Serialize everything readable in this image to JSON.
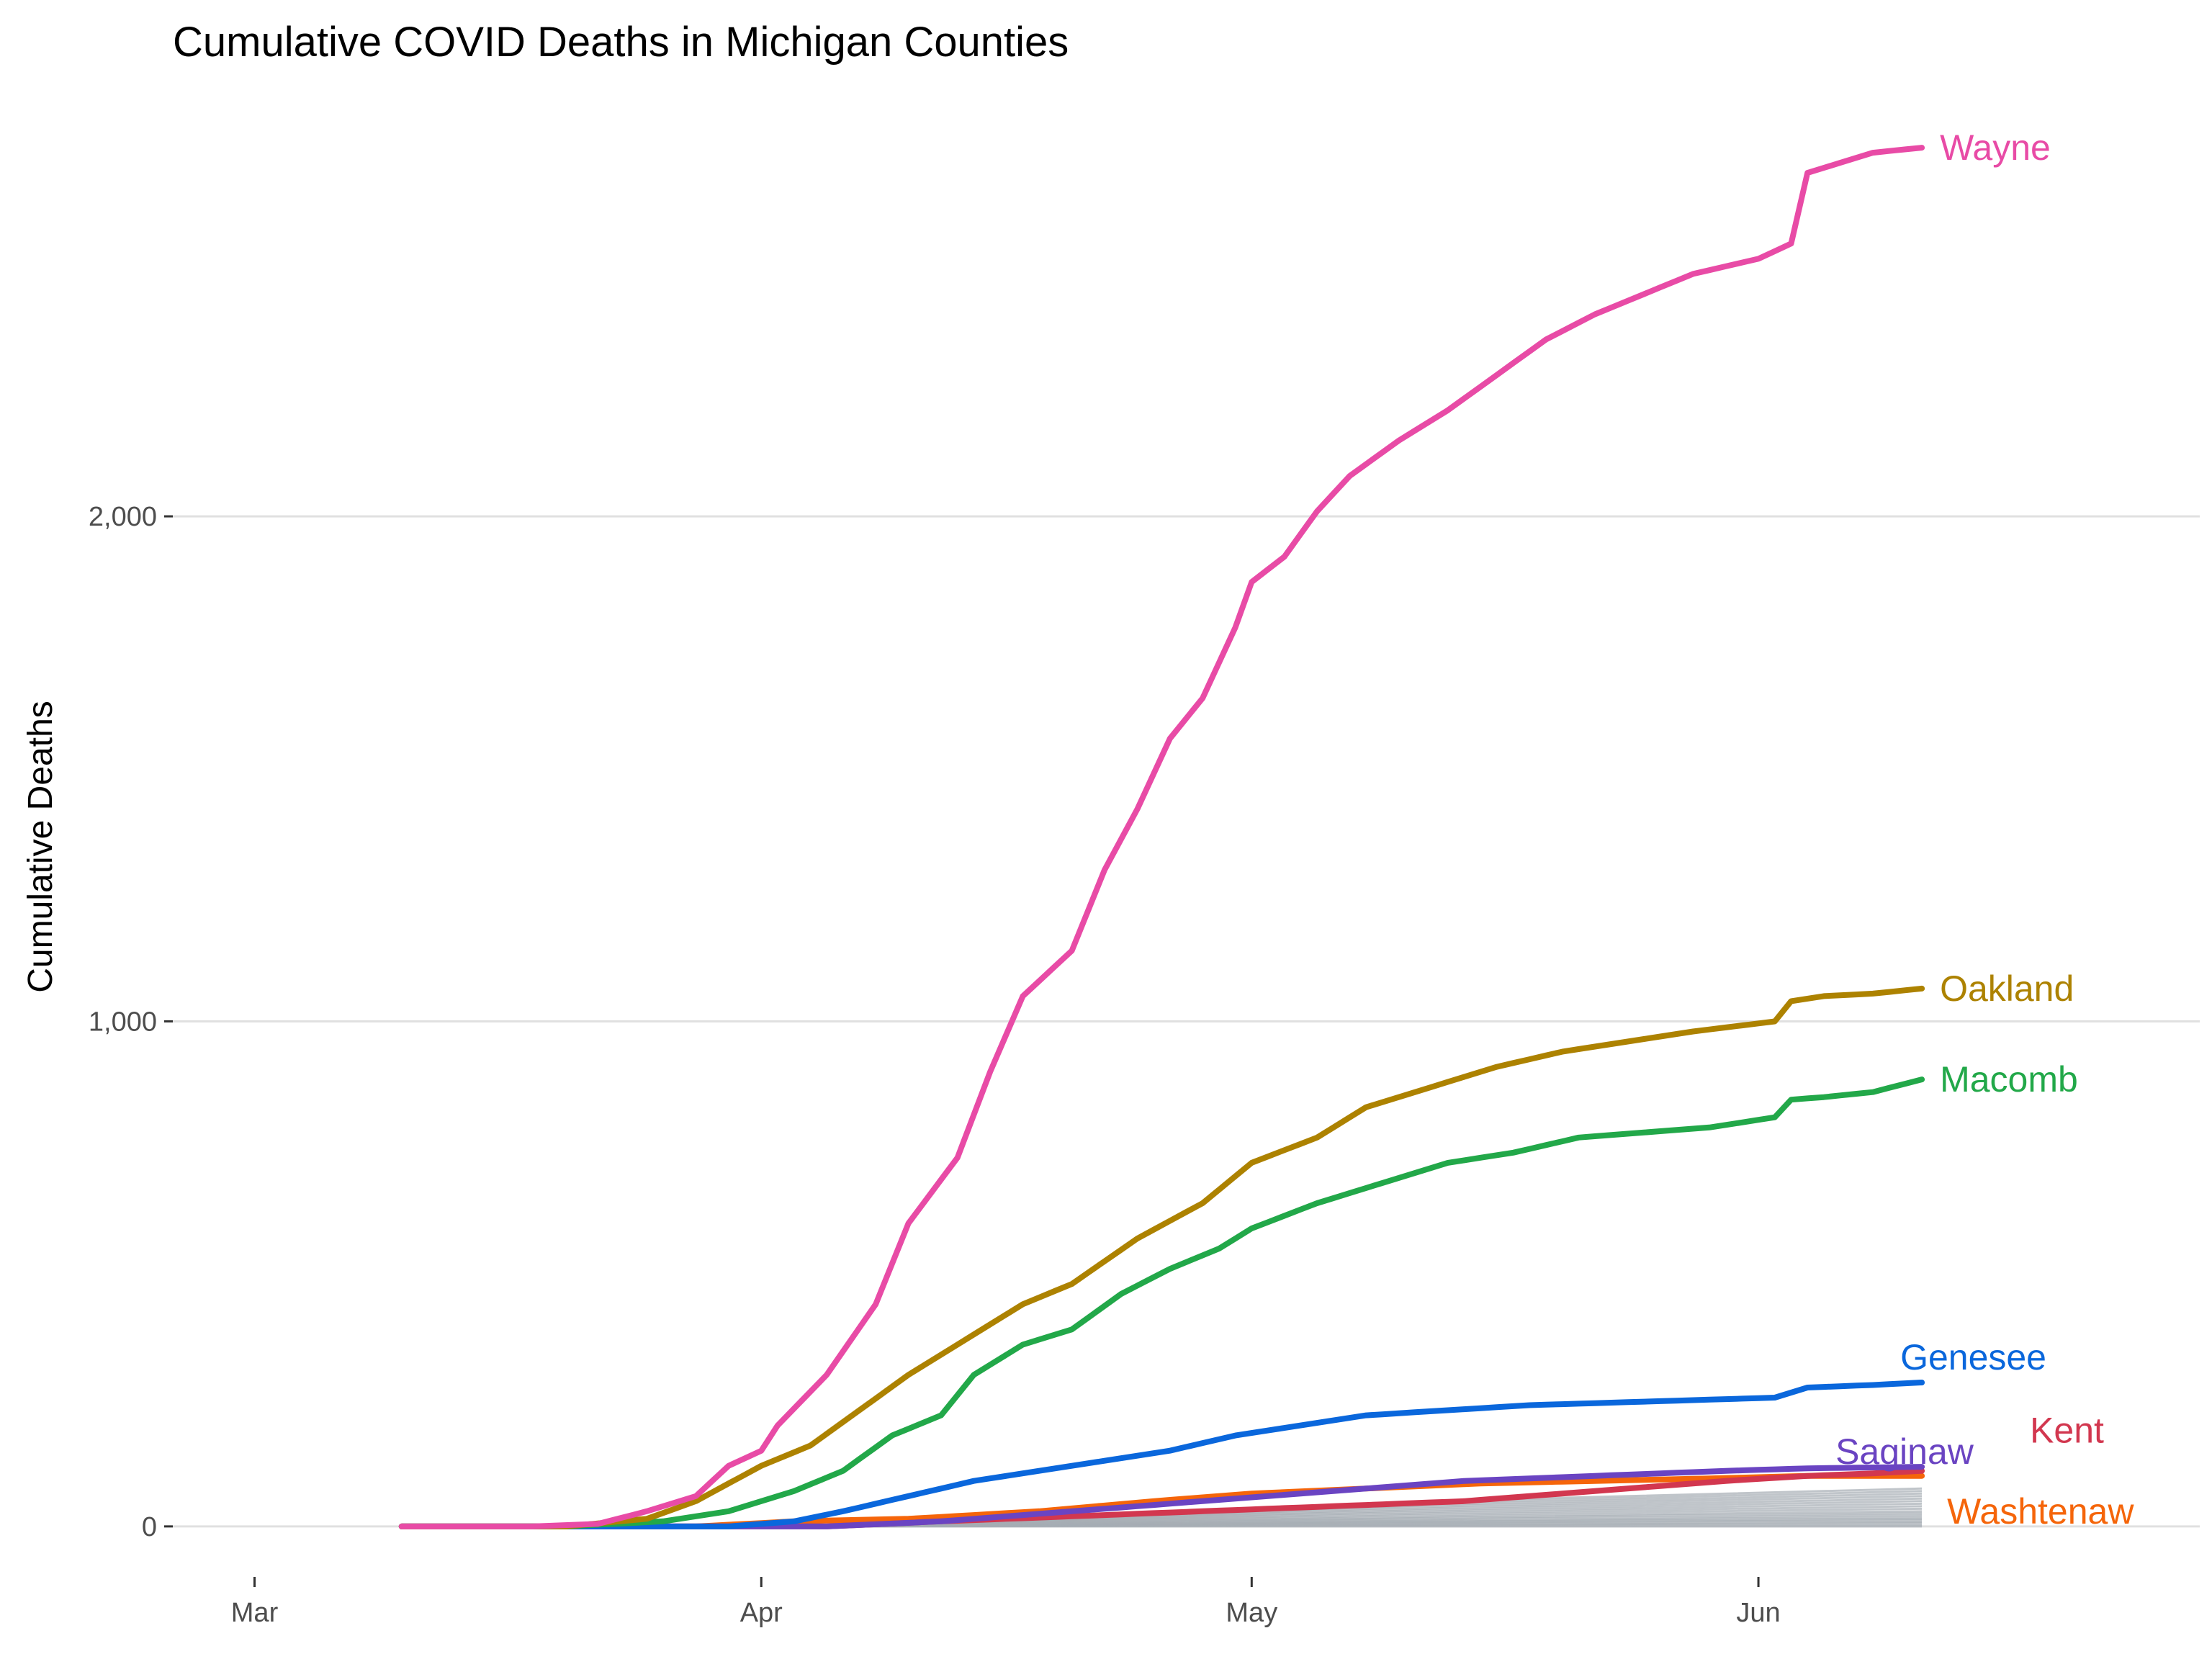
{
  "chart_data": {
    "type": "line",
    "title": "Cumulative COVID Deaths in Michigan Counties",
    "xlabel": "",
    "ylabel": "Cumulative Deaths",
    "x_range": [
      "2020-02-25",
      "2020-06-28"
    ],
    "ylim": [
      -100,
      2780
    ],
    "x_ticks": [
      {
        "date": "2020-03-01",
        "label": "Mar"
      },
      {
        "date": "2020-04-01",
        "label": "Apr"
      },
      {
        "date": "2020-05-01",
        "label": "May"
      },
      {
        "date": "2020-06-01",
        "label": "Jun"
      }
    ],
    "y_ticks": [
      {
        "value": 0,
        "label": "0"
      },
      {
        "value": 1000,
        "label": "1,000"
      },
      {
        "value": 2000,
        "label": "2,000"
      }
    ],
    "grid": "horizontal major lines",
    "legend": "direct labels at line ends",
    "series": [
      {
        "name": "Wayne",
        "color": "#E84BA6",
        "points": [
          [
            "2020-03-10",
            0
          ],
          [
            "2020-03-18",
            0
          ],
          [
            "2020-03-22",
            5
          ],
          [
            "2020-03-25",
            30
          ],
          [
            "2020-03-28",
            60
          ],
          [
            "2020-03-30",
            120
          ],
          [
            "2020-04-01",
            150
          ],
          [
            "2020-04-02",
            200
          ],
          [
            "2020-04-05",
            300
          ],
          [
            "2020-04-08",
            440
          ],
          [
            "2020-04-10",
            600
          ],
          [
            "2020-04-13",
            730
          ],
          [
            "2020-04-15",
            900
          ],
          [
            "2020-04-17",
            1050
          ],
          [
            "2020-04-20",
            1140
          ],
          [
            "2020-04-22",
            1300
          ],
          [
            "2020-04-24",
            1420
          ],
          [
            "2020-04-26",
            1560
          ],
          [
            "2020-04-28",
            1640
          ],
          [
            "2020-04-30",
            1780
          ],
          [
            "2020-05-01",
            1870
          ],
          [
            "2020-05-03",
            1920
          ],
          [
            "2020-05-05",
            2010
          ],
          [
            "2020-05-07",
            2080
          ],
          [
            "2020-05-10",
            2150
          ],
          [
            "2020-05-13",
            2210
          ],
          [
            "2020-05-16",
            2280
          ],
          [
            "2020-05-19",
            2350
          ],
          [
            "2020-05-22",
            2400
          ],
          [
            "2020-05-25",
            2440
          ],
          [
            "2020-05-28",
            2480
          ],
          [
            "2020-06-01",
            2510
          ],
          [
            "2020-06-03",
            2540
          ],
          [
            "2020-06-04",
            2680
          ],
          [
            "2020-06-06",
            2700
          ],
          [
            "2020-06-08",
            2720
          ],
          [
            "2020-06-11",
            2730
          ]
        ]
      },
      {
        "name": "Oakland",
        "color": "#AD8200",
        "points": [
          [
            "2020-03-10",
            0
          ],
          [
            "2020-03-20",
            0
          ],
          [
            "2020-03-25",
            15
          ],
          [
            "2020-03-28",
            50
          ],
          [
            "2020-04-01",
            120
          ],
          [
            "2020-04-04",
            160
          ],
          [
            "2020-04-07",
            230
          ],
          [
            "2020-04-10",
            300
          ],
          [
            "2020-04-14",
            380
          ],
          [
            "2020-04-17",
            440
          ],
          [
            "2020-04-20",
            480
          ],
          [
            "2020-04-24",
            570
          ],
          [
            "2020-04-28",
            640
          ],
          [
            "2020-05-01",
            720
          ],
          [
            "2020-05-05",
            770
          ],
          [
            "2020-05-08",
            830
          ],
          [
            "2020-05-12",
            870
          ],
          [
            "2020-05-16",
            910
          ],
          [
            "2020-05-20",
            940
          ],
          [
            "2020-05-24",
            960
          ],
          [
            "2020-05-28",
            980
          ],
          [
            "2020-06-02",
            1000
          ],
          [
            "2020-06-03",
            1040
          ],
          [
            "2020-06-05",
            1050
          ],
          [
            "2020-06-08",
            1055
          ],
          [
            "2020-06-11",
            1065
          ]
        ]
      },
      {
        "name": "Macomb",
        "color": "#22A849",
        "points": [
          [
            "2020-03-10",
            0
          ],
          [
            "2020-03-20",
            0
          ],
          [
            "2020-03-26",
            10
          ],
          [
            "2020-03-30",
            30
          ],
          [
            "2020-04-03",
            70
          ],
          [
            "2020-04-06",
            110
          ],
          [
            "2020-04-09",
            180
          ],
          [
            "2020-04-12",
            220
          ],
          [
            "2020-04-14",
            300
          ],
          [
            "2020-04-17",
            360
          ],
          [
            "2020-04-20",
            390
          ],
          [
            "2020-04-23",
            460
          ],
          [
            "2020-04-26",
            510
          ],
          [
            "2020-04-29",
            550
          ],
          [
            "2020-05-01",
            590
          ],
          [
            "2020-05-05",
            640
          ],
          [
            "2020-05-09",
            680
          ],
          [
            "2020-05-13",
            720
          ],
          [
            "2020-05-17",
            740
          ],
          [
            "2020-05-21",
            770
          ],
          [
            "2020-05-25",
            780
          ],
          [
            "2020-05-29",
            790
          ],
          [
            "2020-06-02",
            810
          ],
          [
            "2020-06-03",
            845
          ],
          [
            "2020-06-05",
            850
          ],
          [
            "2020-06-08",
            860
          ],
          [
            "2020-06-11",
            885
          ]
        ]
      },
      {
        "name": "Genesee",
        "color": "#0A67DC",
        "points": [
          [
            "2020-03-10",
            0
          ],
          [
            "2020-03-30",
            0
          ],
          [
            "2020-04-03",
            10
          ],
          [
            "2020-04-06",
            30
          ],
          [
            "2020-04-10",
            60
          ],
          [
            "2020-04-14",
            90
          ],
          [
            "2020-04-18",
            110
          ],
          [
            "2020-04-22",
            130
          ],
          [
            "2020-04-26",
            150
          ],
          [
            "2020-04-30",
            180
          ],
          [
            "2020-05-04",
            200
          ],
          [
            "2020-05-08",
            220
          ],
          [
            "2020-05-13",
            230
          ],
          [
            "2020-05-18",
            240
          ],
          [
            "2020-05-23",
            245
          ],
          [
            "2020-05-28",
            250
          ],
          [
            "2020-06-02",
            255
          ],
          [
            "2020-06-04",
            275
          ],
          [
            "2020-06-08",
            280
          ],
          [
            "2020-06-11",
            285
          ]
        ]
      },
      {
        "name": "Kent",
        "color": "#D2374F",
        "points": [
          [
            "2020-03-10",
            0
          ],
          [
            "2020-04-05",
            0
          ],
          [
            "2020-04-12",
            10
          ],
          [
            "2020-04-20",
            20
          ],
          [
            "2020-04-28",
            30
          ],
          [
            "2020-05-06",
            40
          ],
          [
            "2020-05-14",
            50
          ],
          [
            "2020-05-22",
            70
          ],
          [
            "2020-05-30",
            90
          ],
          [
            "2020-06-04",
            100
          ],
          [
            "2020-06-08",
            105
          ],
          [
            "2020-06-11",
            110
          ]
        ]
      },
      {
        "name": "Saginaw",
        "color": "#6A44C2",
        "points": [
          [
            "2020-03-10",
            0
          ],
          [
            "2020-04-05",
            0
          ],
          [
            "2020-04-12",
            10
          ],
          [
            "2020-04-20",
            30
          ],
          [
            "2020-04-28",
            50
          ],
          [
            "2020-05-06",
            70
          ],
          [
            "2020-05-14",
            90
          ],
          [
            "2020-05-22",
            100
          ],
          [
            "2020-05-30",
            110
          ],
          [
            "2020-06-04",
            115
          ],
          [
            "2020-06-11",
            118
          ]
        ]
      },
      {
        "name": "Washtenaw",
        "color": "#F5650A",
        "points": [
          [
            "2020-03-10",
            0
          ],
          [
            "2020-03-28",
            0
          ],
          [
            "2020-04-03",
            10
          ],
          [
            "2020-04-10",
            15
          ],
          [
            "2020-04-18",
            30
          ],
          [
            "2020-04-25",
            50
          ],
          [
            "2020-05-01",
            65
          ],
          [
            "2020-05-08",
            75
          ],
          [
            "2020-05-15",
            85
          ],
          [
            "2020-05-22",
            90
          ],
          [
            "2020-05-29",
            95
          ],
          [
            "2020-06-04",
            100
          ],
          [
            "2020-06-11",
            100
          ]
        ]
      }
    ],
    "background_series": {
      "color": "#A5ADB4",
      "note": "other counties, unlabeled",
      "final_values": [
        0,
        3,
        6,
        9,
        12,
        15,
        18,
        22,
        26,
        30,
        35,
        40,
        45,
        50,
        55,
        60,
        65,
        70,
        75
      ]
    }
  }
}
